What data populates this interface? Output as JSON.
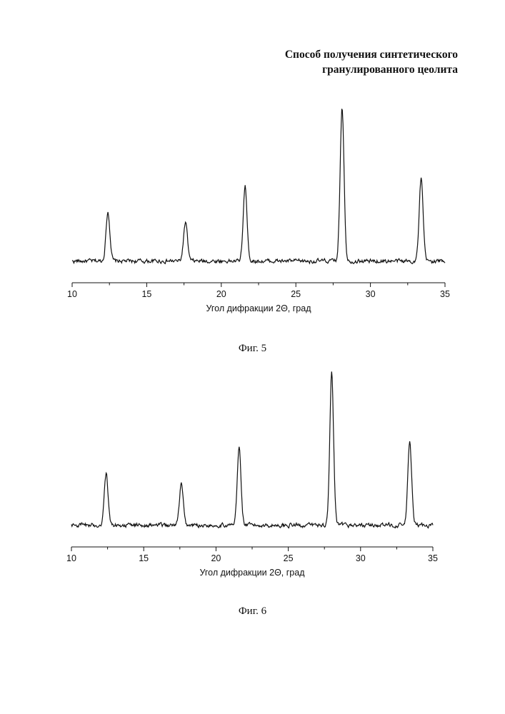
{
  "document": {
    "title_line1": "Способ получения синтетического",
    "title_line2": "гранулированного цеолита"
  },
  "chart_data": [
    {
      "type": "line",
      "caption": "Фиг. 5",
      "xlabel": "Угол дифракции 2Θ, град",
      "ylabel": "",
      "xlim": [
        10,
        35
      ],
      "xticks": [
        "10",
        "15",
        "20",
        "25",
        "30",
        "35"
      ],
      "y_axis_visible": false,
      "grid": false,
      "peaks": [
        {
          "x": 12.4,
          "intensity": 0.32
        },
        {
          "x": 17.6,
          "intensity": 0.25
        },
        {
          "x": 21.6,
          "intensity": 0.48
        },
        {
          "x": 28.1,
          "intensity": 1.0
        },
        {
          "x": 33.4,
          "intensity": 0.53
        }
      ],
      "baseline": 0.02
    },
    {
      "type": "line",
      "caption": "Фиг. 6",
      "xlabel": "Угол дифракции 2Θ, град",
      "ylabel": "",
      "xlim": [
        10,
        35
      ],
      "xticks": [
        "10",
        "15",
        "20",
        "25",
        "30",
        "35"
      ],
      "y_axis_visible": false,
      "grid": false,
      "peaks": [
        {
          "x": 12.4,
          "intensity": 0.34
        },
        {
          "x": 17.6,
          "intensity": 0.27
        },
        {
          "x": 21.6,
          "intensity": 0.51
        },
        {
          "x": 28.0,
          "intensity": 1.0
        },
        {
          "x": 33.4,
          "intensity": 0.55
        }
      ],
      "baseline": 0.03
    }
  ]
}
